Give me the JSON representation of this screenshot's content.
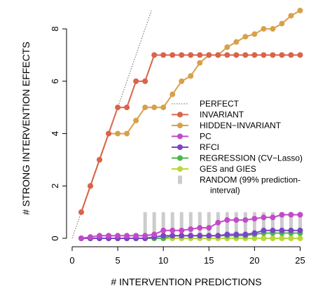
{
  "chart_data": {
    "type": "line",
    "xlabel": "# INTERVENTION PREDICTIONS",
    "ylabel": "# STRONG INTERVENTION EFFECTS",
    "xlim": [
      0,
      25.5
    ],
    "ylim": [
      0,
      8.7
    ],
    "x_ticks": [
      0,
      5,
      10,
      15,
      20,
      25
    ],
    "y_ticks": [
      0,
      2,
      4,
      6,
      8
    ],
    "grid": false,
    "legend_position": "right",
    "perfect": {
      "name": "PERFECT",
      "color": "#666666",
      "x": [
        0,
        9
      ],
      "y": [
        0,
        9
      ]
    },
    "random_band": {
      "name": "RANDOM (99% prediction-",
      "name_line2": "interval)",
      "color": "#cccccc",
      "x": [
        8,
        9,
        10,
        11,
        12,
        13,
        14,
        15,
        16,
        17,
        18,
        19,
        20,
        21,
        22,
        23,
        24,
        25
      ],
      "low": [
        0,
        0,
        0,
        0,
        0,
        0,
        0,
        0,
        0,
        0,
        0,
        0,
        0,
        0,
        0,
        0,
        0,
        0
      ],
      "high": [
        1,
        1,
        1,
        1,
        1,
        1,
        1,
        1,
        1,
        1,
        1,
        1,
        1,
        1,
        1,
        1,
        1,
        1
      ]
    },
    "series": [
      {
        "name": "INVARIANT",
        "color": "#d9644a",
        "x": [
          1,
          2,
          3,
          4,
          5,
          6,
          7,
          8,
          9,
          10,
          11,
          12,
          13,
          14,
          15,
          16,
          17,
          18,
          19,
          20,
          21,
          22,
          23,
          24,
          25
        ],
        "values": [
          1,
          2,
          3,
          4,
          5,
          5,
          6,
          6,
          7,
          7,
          7,
          7,
          7,
          7,
          7,
          7,
          7,
          7,
          7,
          7,
          7,
          7,
          7,
          7,
          7
        ]
      },
      {
        "name": "HIDDEN−INVARIANT",
        "color": "#d9a04a",
        "x": [
          1,
          2,
          3,
          4,
          5,
          6,
          7,
          8,
          9,
          10,
          11,
          12,
          13,
          14,
          15,
          16,
          17,
          18,
          19,
          20,
          21,
          22,
          23,
          24,
          25
        ],
        "values": [
          1,
          2,
          3,
          4,
          4,
          4,
          4.5,
          5,
          5,
          5,
          5.5,
          6,
          6.2,
          6.7,
          7,
          7,
          7.3,
          7.5,
          7.7,
          7.8,
          8,
          8,
          8.2,
          8.5,
          8.7
        ]
      },
      {
        "name": "PC",
        "color": "#c24ac8",
        "x": [
          1,
          2,
          3,
          4,
          5,
          6,
          7,
          8,
          9,
          10,
          11,
          12,
          13,
          14,
          15,
          16,
          17,
          18,
          19,
          20,
          21,
          22,
          23,
          24,
          25
        ],
        "values": [
          0,
          0.05,
          0.1,
          0.1,
          0.1,
          0.1,
          0.1,
          0.1,
          0.15,
          0.3,
          0.3,
          0.3,
          0.35,
          0.4,
          0.4,
          0.6,
          0.7,
          0.7,
          0.7,
          0.75,
          0.8,
          0.8,
          0.9,
          0.9,
          0.9
        ]
      },
      {
        "name": "RFCI",
        "color": "#7a44c8",
        "x": [
          1,
          2,
          3,
          4,
          5,
          6,
          7,
          8,
          9,
          10,
          11,
          12,
          13,
          14,
          15,
          16,
          17,
          18,
          19,
          20,
          21,
          22,
          23,
          24,
          25
        ],
        "values": [
          0,
          0,
          0,
          0,
          0,
          0,
          0,
          0,
          0.05,
          0.1,
          0.1,
          0.1,
          0.1,
          0.1,
          0.1,
          0.1,
          0.15,
          0.15,
          0.15,
          0.2,
          0.3,
          0.3,
          0.3,
          0.3,
          0.3
        ]
      },
      {
        "name": "REGRESSION (CV−Lasso)",
        "color": "#4ab84a",
        "x": [
          1,
          2,
          3,
          4,
          5,
          6,
          7,
          8,
          9,
          10,
          11,
          12,
          13,
          14,
          15,
          16,
          17,
          18,
          19,
          20,
          21,
          22,
          23,
          24,
          25
        ],
        "values": [
          0,
          0,
          0,
          0,
          0,
          0,
          0,
          0,
          0,
          0,
          0.1,
          0.1,
          0.1,
          0.1,
          0.1,
          0.1,
          0.1,
          0.1,
          0.1,
          0.15,
          0.2,
          0.2,
          0.2,
          0.2,
          0.2
        ]
      },
      {
        "name": "GES and GIES",
        "color": "#b8d83a",
        "x": [
          1,
          2,
          3,
          4,
          5,
          6,
          7,
          8,
          9,
          10,
          11,
          12,
          13,
          14,
          15,
          16,
          17,
          18,
          19,
          20,
          21,
          22,
          23,
          24,
          25
        ],
        "values": [
          0,
          0,
          0,
          0,
          0,
          0,
          0,
          0,
          0,
          0,
          0,
          0,
          0,
          0,
          0,
          0,
          0,
          0,
          0,
          0,
          0,
          0,
          0,
          0,
          0
        ]
      }
    ]
  }
}
